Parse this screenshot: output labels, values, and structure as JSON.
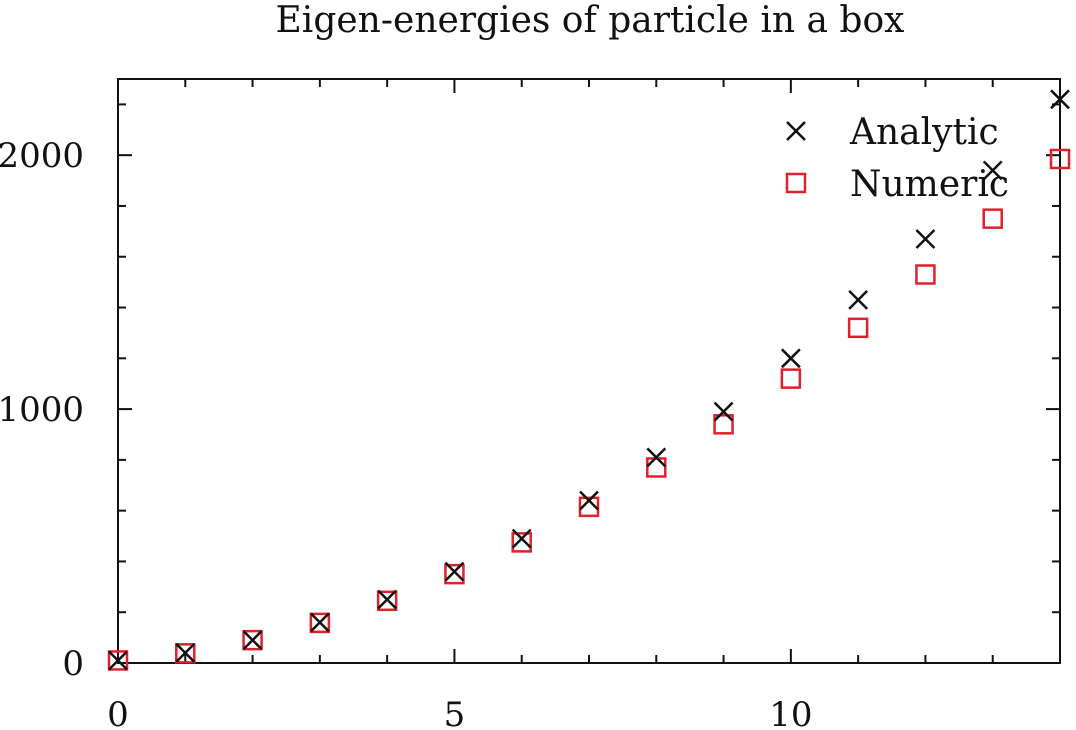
{
  "chart_data": {
    "type": "scatter",
    "title": "Eigen-energies of particle in a box",
    "xlabel": "",
    "ylabel": "",
    "xlim": [
      0,
      14
    ],
    "ylim": [
      0,
      2300
    ],
    "x_ticks": [
      0,
      5,
      10
    ],
    "y_ticks": [
      0,
      1000,
      2000
    ],
    "grid": false,
    "legend_position": "top-right",
    "x": [
      0,
      1,
      2,
      3,
      4,
      5,
      6,
      7,
      8,
      9,
      10,
      11,
      12,
      13,
      14
    ],
    "series": [
      {
        "name": "Analytic",
        "marker": "cross",
        "color": "#111111",
        "values": [
          10,
          40,
          90,
          160,
          250,
          360,
          490,
          640,
          810,
          990,
          1200,
          1430,
          1670,
          1940,
          2220
        ]
      },
      {
        "name": "Numeric",
        "marker": "square",
        "color": "#e0202a",
        "values": [
          10,
          38,
          90,
          158,
          245,
          350,
          475,
          615,
          770,
          940,
          1120,
          1320,
          1530,
          1750,
          1985
        ]
      }
    ]
  }
}
